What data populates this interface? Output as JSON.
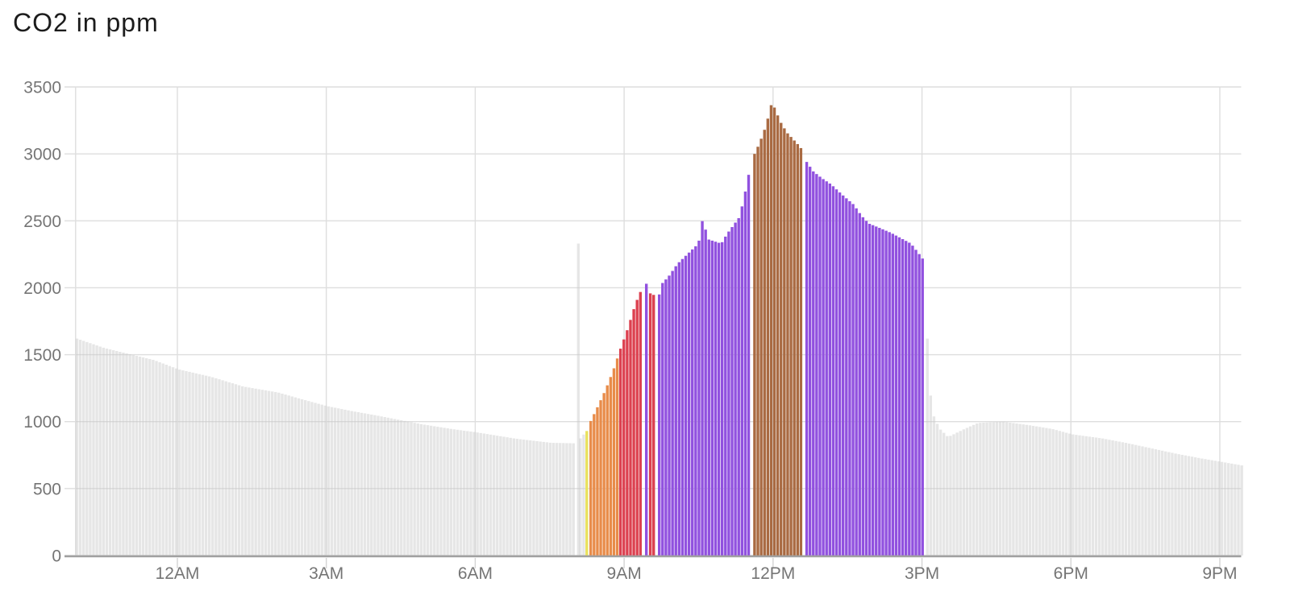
{
  "header": {
    "title": "CO2 in ppm"
  },
  "colors": {
    "background": "#ffffff",
    "title_text": "#1c1c1c",
    "tick_label": "#757575",
    "gridline": "#dedede",
    "axis_baseline": "#a0a0a0",
    "axis_tick": "#d4d4d4",
    "baseline_gray": "rgba(200,200,200,0.45)",
    "yellow": "#e9e25c",
    "orange": "#e88c4a",
    "red": "#dc4150",
    "purple": "#9151df",
    "brown": "#a96a42"
  },
  "chart_data": {
    "type": "bar",
    "title": "CO2 in ppm",
    "xlabel": "",
    "ylabel": "",
    "unit": "ppm",
    "grid": true,
    "legend": "none",
    "ylim": [
      0,
      3500
    ],
    "y_ticks": [
      0,
      500,
      1000,
      1500,
      2000,
      2500,
      3000,
      3500
    ],
    "x_ticks": [
      {
        "hour": 0,
        "label": "12AM"
      },
      {
        "hour": 3,
        "label": "3AM"
      },
      {
        "hour": 6,
        "label": "6AM"
      },
      {
        "hour": 9,
        "label": "9AM"
      },
      {
        "hour": 12,
        "label": "12PM"
      },
      {
        "hour": 15,
        "label": "3PM"
      },
      {
        "hour": 18,
        "label": "6PM"
      },
      {
        "hour": 21,
        "label": "9PM"
      }
    ],
    "x_domain_hours": [
      -2.05,
      21.43
    ],
    "bar_interval_minutes": 4,
    "series_segments": [
      {
        "name": "overnight-baseline",
        "color_key": "baseline_gray",
        "anchors": [
          [
            -2.05,
            1620
          ],
          [
            -1.5,
            1550
          ],
          [
            -1.0,
            1505
          ],
          [
            -0.5,
            1460
          ],
          [
            0,
            1390
          ],
          [
            0.65,
            1335
          ],
          [
            1.3,
            1262
          ],
          [
            2.0,
            1218
          ],
          [
            2.5,
            1165
          ],
          [
            3.0,
            1115
          ],
          [
            3.5,
            1078
          ],
          [
            4.0,
            1045
          ],
          [
            4.9,
            980
          ],
          [
            5.5,
            945
          ],
          [
            6.0,
            920
          ],
          [
            6.8,
            872
          ],
          [
            7.5,
            842
          ],
          [
            8.0,
            838
          ]
        ]
      },
      {
        "name": "morning-spike",
        "color_key": "baseline_gray",
        "anchors": [
          [
            8.05,
            2330
          ]
        ]
      },
      {
        "name": "pre-activity-gray",
        "color_key": "baseline_gray",
        "anchors": [
          [
            8.09,
            875
          ],
          [
            8.16,
            905
          ]
        ]
      },
      {
        "name": "activity-yellow",
        "color_key": "yellow",
        "anchors": [
          [
            8.22,
            930
          ]
        ]
      },
      {
        "name": "activity-orange",
        "color_key": "orange",
        "anchors": [
          [
            8.3,
            1005
          ],
          [
            8.45,
            1120
          ],
          [
            8.6,
            1240
          ],
          [
            8.75,
            1380
          ],
          [
            8.85,
            1490
          ]
        ]
      },
      {
        "name": "activity-red-rise",
        "color_key": "red",
        "anchors": [
          [
            8.9,
            1545
          ],
          [
            9.05,
            1700
          ],
          [
            9.2,
            1880
          ],
          [
            9.33,
            1995
          ]
        ]
      },
      {
        "name": "activity-purple-blip",
        "color_key": "purple",
        "anchors": [
          [
            9.42,
            2030
          ]
        ]
      },
      {
        "name": "activity-red-dip",
        "color_key": "red",
        "anchors": [
          [
            9.5,
            1958
          ],
          [
            9.62,
            1938
          ]
        ]
      },
      {
        "name": "activity-purple-rise",
        "color_key": "purple",
        "anchors": [
          [
            9.68,
            1950
          ],
          [
            9.75,
            2040
          ],
          [
            9.85,
            2075
          ],
          [
            10.05,
            2180
          ],
          [
            10.3,
            2270
          ],
          [
            10.47,
            2330
          ],
          [
            10.55,
            2505
          ],
          [
            10.68,
            2360
          ],
          [
            10.93,
            2330
          ],
          [
            11.05,
            2405
          ],
          [
            11.3,
            2530
          ],
          [
            11.45,
            2780
          ],
          [
            11.53,
            2950
          ]
        ]
      },
      {
        "name": "activity-brown-peak",
        "color_key": "brown",
        "anchors": [
          [
            11.6,
            3000
          ],
          [
            11.7,
            3080
          ],
          [
            11.8,
            3180
          ],
          [
            11.88,
            3280
          ],
          [
            11.95,
            3390
          ],
          [
            12.03,
            3320
          ],
          [
            12.12,
            3240
          ],
          [
            12.25,
            3160
          ],
          [
            12.4,
            3100
          ],
          [
            12.5,
            3060
          ],
          [
            12.58,
            3020
          ]
        ]
      },
      {
        "name": "activity-purple-decline",
        "color_key": "purple",
        "anchors": [
          [
            12.65,
            2940
          ],
          [
            12.78,
            2870
          ],
          [
            12.95,
            2820
          ],
          [
            13.15,
            2770
          ],
          [
            13.35,
            2700
          ],
          [
            13.6,
            2620
          ],
          [
            13.75,
            2540
          ],
          [
            13.9,
            2480
          ],
          [
            14.1,
            2450
          ],
          [
            14.35,
            2410
          ],
          [
            14.55,
            2370
          ],
          [
            14.75,
            2330
          ],
          [
            14.9,
            2260
          ],
          [
            15.02,
            2200
          ]
        ]
      },
      {
        "name": "evening-baseline",
        "color_key": "baseline_gray",
        "anchors": [
          [
            15.08,
            1620
          ],
          [
            15.13,
            1240
          ],
          [
            15.2,
            1050
          ],
          [
            15.32,
            950
          ],
          [
            15.5,
            885
          ],
          [
            15.8,
            940
          ],
          [
            16.1,
            990
          ],
          [
            16.6,
            1000
          ],
          [
            17.1,
            975
          ],
          [
            17.6,
            945
          ],
          [
            18.0,
            905
          ],
          [
            18.6,
            875
          ],
          [
            19.1,
            840
          ],
          [
            19.6,
            800
          ],
          [
            20.1,
            760
          ],
          [
            20.6,
            725
          ],
          [
            21.0,
            700
          ],
          [
            21.43,
            672
          ]
        ]
      }
    ]
  }
}
